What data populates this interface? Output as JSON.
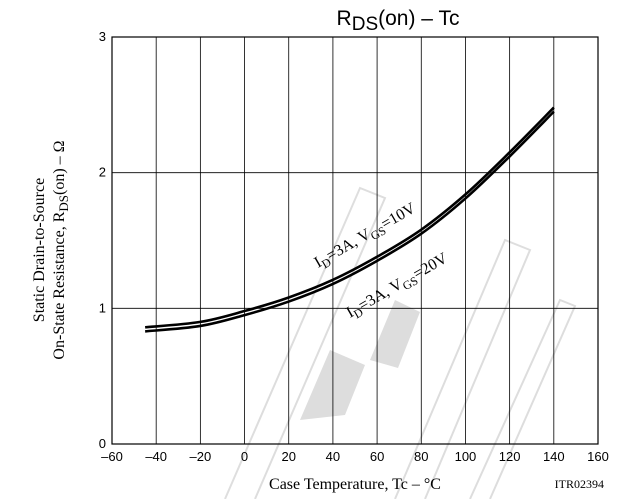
{
  "chart_data": {
    "type": "line",
    "title_main": "R",
    "title_sub": "DS",
    "title_rest": "(on)  –  Tc",
    "xlabel": "Case Temperature, Tc  –  °C",
    "ylabel_line1": "Static Drain-to-Source",
    "ylabel_line2_main": "On-State Resistance, R",
    "ylabel_line2_sub": "DS",
    "ylabel_line2_rest": "(on)  –  Ω",
    "code": "ITR02394",
    "xlim": [
      -60,
      160
    ],
    "ylim": [
      0,
      3
    ],
    "x_ticks": [
      -60,
      -40,
      -20,
      0,
      20,
      40,
      60,
      80,
      100,
      120,
      140,
      160
    ],
    "y_ticks": [
      0,
      1,
      2,
      3
    ],
    "x_tick_labels": [
      "–60",
      "–40",
      "–20",
      "0",
      "20",
      "40",
      "60",
      "80",
      "100",
      "120",
      "140",
      "160"
    ],
    "y_tick_labels": [
      "0",
      "1",
      "2",
      "3"
    ],
    "grid": true,
    "series": [
      {
        "label_id": "I",
        "label_id_sub": "D",
        "label_mid": "=3A, V",
        "label_vgs_sub": "GS",
        "label_end": "=10V",
        "x": [
          -45,
          -20,
          0,
          20,
          40,
          60,
          80,
          100,
          120,
          140
        ],
        "values": [
          0.86,
          0.9,
          0.98,
          1.08,
          1.21,
          1.38,
          1.58,
          1.84,
          2.15,
          2.48
        ]
      },
      {
        "label_id": "I",
        "label_id_sub": "D",
        "label_mid": "=3A, V",
        "label_vgs_sub": "GS",
        "label_end": "=20V",
        "x": [
          -45,
          -20,
          0,
          20,
          40,
          60,
          80,
          100,
          120,
          140
        ],
        "values": [
          0.83,
          0.87,
          0.95,
          1.05,
          1.18,
          1.35,
          1.55,
          1.81,
          2.12,
          2.45
        ]
      }
    ]
  }
}
